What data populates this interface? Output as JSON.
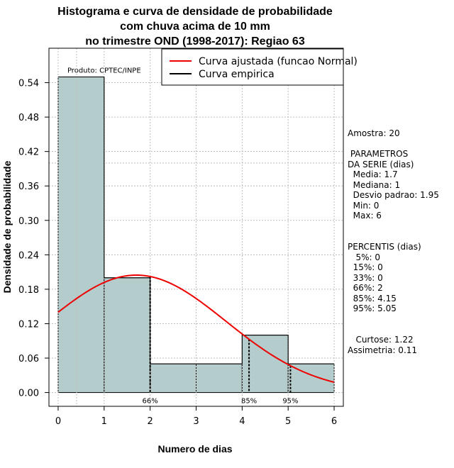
{
  "chart_data": {
    "type": "histogram",
    "title_lines": [
      "Histograma e curva de densidade de probabilidade",
      "com chuva acima de 10 mm",
      "no trimestre OND (1998-2017): Regiao 63"
    ],
    "xlabel": "Numero de dias",
    "ylabel": "Densidade de probabilidade",
    "xlim": [
      -0.2,
      6.2
    ],
    "ylim": [
      -0.024,
      0.6
    ],
    "x_ticks": [
      "0",
      "1",
      "2",
      "3",
      "4",
      "5",
      "6"
    ],
    "y_ticks": [
      "0.00",
      "0.06",
      "0.12",
      "0.18",
      "0.24",
      "0.30",
      "0.36",
      "0.42",
      "0.48",
      "0.54"
    ],
    "x_ref_line": 0.4,
    "bins": [
      {
        "from": 0,
        "to": 1,
        "density": 0.55
      },
      {
        "from": 1,
        "to": 2,
        "density": 0.2
      },
      {
        "from": 2,
        "to": 3,
        "density": 0.05
      },
      {
        "from": 3,
        "to": 4,
        "density": 0.05
      },
      {
        "from": 4,
        "to": 5,
        "density": 0.1
      },
      {
        "from": 5,
        "to": 6,
        "density": 0.05
      }
    ],
    "normal_fit": {
      "mean": 1.7,
      "sd": 1.95,
      "x_from": 0,
      "x_to": 6,
      "color": "#ee0000"
    },
    "percentile_markers": [
      {
        "label": "66%",
        "x": 2
      },
      {
        "label": "85%",
        "x": 4.15
      },
      {
        "label": "95%",
        "x": 5.05
      }
    ],
    "product_label": "Produto: CPTEC/INPE",
    "legend": [
      {
        "label": "Curva ajustada (funcao Normal)",
        "color": "#ee0000"
      },
      {
        "label": "Curva empirica",
        "color": "#000000"
      }
    ],
    "bar_color": "#b4cccc",
    "grid": true
  },
  "stats": {
    "amostra": "Amostra: 20",
    "param_lines": [
      " PARAMETROS",
      "DA SERIE (dias)",
      "  Media: 1.7",
      "  Mediana: 1",
      "  Desvio padrao: 1.95",
      "  Min: 0",
      "  Max: 6"
    ],
    "percentis_lines": [
      "PERCENTIS (dias)",
      "   5%: 0",
      "  15%: 0",
      "  33%: 0",
      "  66%: 2",
      "  85%: 4.15",
      "  95%: 5.05"
    ],
    "shape_lines": [
      "   Curtose: 1.22",
      "Assimetria: 0.11"
    ]
  }
}
